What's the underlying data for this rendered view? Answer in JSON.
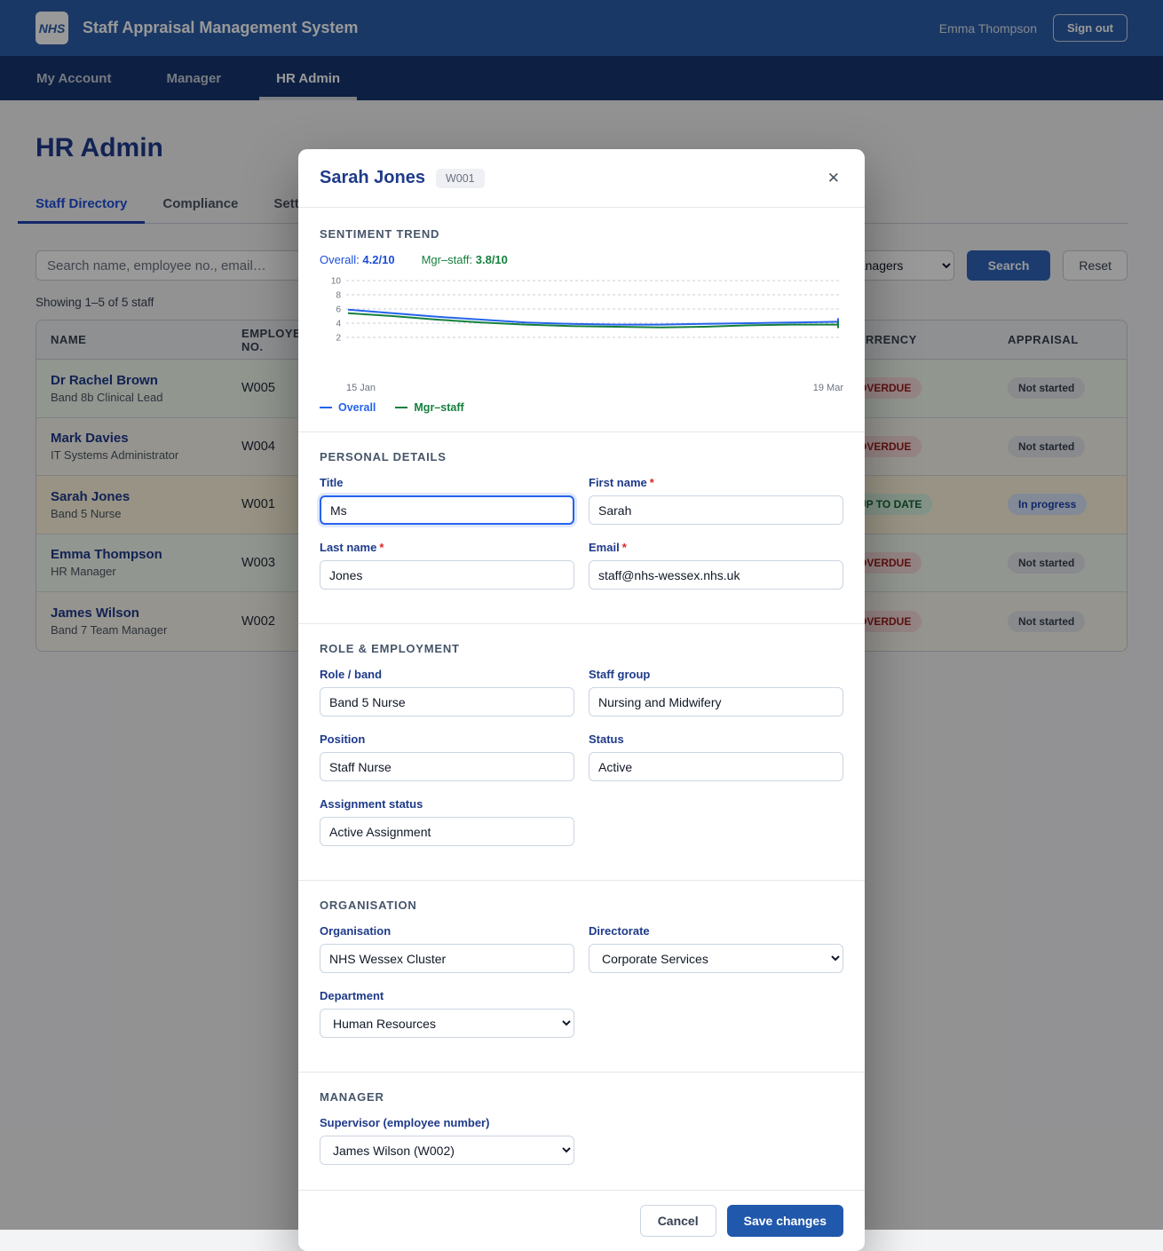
{
  "ui": {
    "required_marker": "*"
  },
  "colors": {
    "brand_blue": "#2c5ea9",
    "nav_blue": "#16346e",
    "accent_blue": "#1d4ed8",
    "save_blue": "#2058ac",
    "overall_line": "#2563eb",
    "mgr_line": "#15803d",
    "badge": {
      "overdue": {
        "bg": "#f8dcdc",
        "text": "#9b1c1c"
      },
      "uptodate": {
        "bg": "#d9f3e1",
        "text": "#166534"
      },
      "notstarted": {
        "bg": "#e4e7eb",
        "text": "#374151"
      },
      "inprogress": {
        "bg": "#d8e6fb",
        "text": "#1e40af"
      }
    }
  },
  "header": {
    "logo": "NHS",
    "title": "Staff Appraisal Management System",
    "user": "Emma Thompson",
    "sign_out": "Sign out"
  },
  "nav": {
    "items": [
      {
        "label": "My Account",
        "active": false
      },
      {
        "label": "Manager",
        "active": false
      },
      {
        "label": "HR Admin",
        "active": true
      }
    ]
  },
  "page": {
    "title": "HR Admin",
    "tabs": [
      {
        "label": "Staff Directory",
        "active": true
      },
      {
        "label": "Compliance",
        "active": false
      },
      {
        "label": "Settings",
        "active": false
      }
    ],
    "search_placeholder": "Search name, employee no., email…",
    "manager_filter_value": "All managers",
    "search_button": "Search",
    "reset_button": "Reset",
    "showing": "Showing 1–5 of 5 staff",
    "table": {
      "headers": [
        "NAME",
        "EMPLOYEE NO.",
        "",
        "CURRENCY",
        "APPRAISAL"
      ],
      "rows": [
        {
          "name": "Dr Rachel Brown",
          "role": "Band 8b Clinical Lead",
          "employee_no": "W005",
          "currency": "OVERDUE",
          "currency_type": "overdue",
          "appraisal": "Not started",
          "appraisal_type": "notstarted",
          "tint": "#f2fbee"
        },
        {
          "name": "Mark Davies",
          "role": "IT Systems Administrator",
          "employee_no": "W004",
          "currency": "OVERDUE",
          "currency_type": "overdue",
          "appraisal": "Not started",
          "appraisal_type": "notstarted",
          "tint": "#faf7ef"
        },
        {
          "name": "Sarah Jones",
          "role": "Band 5 Nurse",
          "employee_no": "W001",
          "currency": "UP TO DATE",
          "currency_type": "uptodate",
          "appraisal": "In progress",
          "appraisal_type": "inprogress",
          "tint": "#fdf5dd"
        },
        {
          "name": "Emma Thompson",
          "role": "HR Manager",
          "employee_no": "W003",
          "currency": "OVERDUE",
          "currency_type": "overdue",
          "appraisal": "Not started",
          "appraisal_type": "notstarted",
          "tint": "#f3faf0"
        },
        {
          "name": "James Wilson",
          "role": "Band 7 Team Manager",
          "employee_no": "W002",
          "currency": "OVERDUE",
          "currency_type": "overdue",
          "appraisal": "Not started",
          "appraisal_type": "notstarted",
          "tint": "#faf7ef"
        }
      ]
    }
  },
  "chart_data": {
    "type": "line",
    "title": "Sentiment trend",
    "ylim": [
      0,
      10
    ],
    "y_ticks": [
      10,
      8,
      6,
      4,
      2
    ],
    "grid": "dashed-horizontal",
    "x_axis": {
      "start_label": "15 Jan",
      "end_label": "19 Mar"
    },
    "legend_position": "bottom",
    "stats": [
      {
        "label": "Overall:",
        "value": "4.2/10",
        "color": "#1d4ed8"
      },
      {
        "label": "Mgr–staff:",
        "value": "3.8/10",
        "color": "#15803d"
      }
    ],
    "series": [
      {
        "name": "Overall",
        "color": "#2563eb",
        "values": [
          5.9,
          5.4,
          4.9,
          4.5,
          4.1,
          3.9,
          3.8,
          3.8,
          3.9,
          4.0,
          4.1,
          4.2
        ]
      },
      {
        "name": "Mgr–staff",
        "color": "#15803d",
        "values": [
          5.4,
          5.0,
          4.5,
          4.1,
          3.8,
          3.6,
          3.5,
          3.4,
          3.5,
          3.7,
          3.8,
          3.8
        ]
      }
    ]
  },
  "modal": {
    "title": "Sarah Jones",
    "badge": "W001",
    "sections": {
      "sentiment": {
        "heading": "SENTIMENT TREND"
      },
      "personal": {
        "heading": "PERSONAL DETAILS",
        "fields": {
          "title": {
            "label": "Title",
            "value": "Ms",
            "required": false,
            "focused": true
          },
          "first_name": {
            "label": "First name",
            "value": "Sarah",
            "required": true
          },
          "last_name": {
            "label": "Last name",
            "value": "Jones",
            "required": true
          },
          "email": {
            "label": "Email",
            "value": "staff@nhs-wessex.nhs.uk",
            "required": true
          }
        }
      },
      "role": {
        "heading": "ROLE & EMPLOYMENT",
        "fields": {
          "role_band": {
            "label": "Role / band",
            "value": "Band 5 Nurse"
          },
          "staff_group": {
            "label": "Staff group",
            "value": "Nursing and Midwifery"
          },
          "position": {
            "label": "Position",
            "value": "Staff Nurse"
          },
          "status": {
            "label": "Status",
            "value": "Active"
          },
          "assignment_status": {
            "label": "Assignment status",
            "value": "Active Assignment"
          }
        }
      },
      "org": {
        "heading": "ORGANISATION",
        "fields": {
          "organisation": {
            "label": "Organisation",
            "value": "NHS Wessex Cluster"
          },
          "directorate": {
            "label": "Directorate",
            "value": "Corporate Services"
          },
          "department": {
            "label": "Department",
            "value": "Human Resources"
          }
        }
      },
      "manager": {
        "heading": "MANAGER",
        "fields": {
          "supervisor": {
            "label": "Supervisor (employee number)",
            "value": "James Wilson (W002)"
          }
        }
      }
    },
    "footer": {
      "cancel_label": "Cancel",
      "save_label": "Save changes"
    }
  }
}
